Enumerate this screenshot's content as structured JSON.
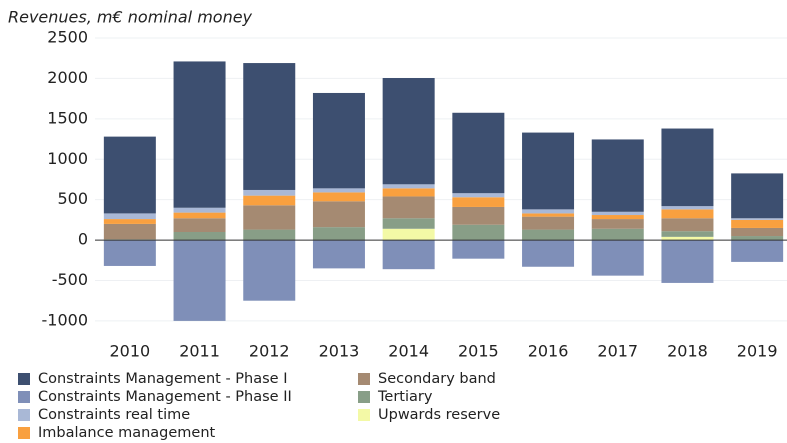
{
  "chart_data": {
    "type": "stacked_bar",
    "title": "Revenues, m€ nominal money",
    "categories": [
      "2010",
      "2011",
      "2012",
      "2013",
      "2014",
      "2015",
      "2016",
      "2017",
      "2018",
      "2019"
    ],
    "series": [
      {
        "name": "Upwards reserve",
        "color": "#f3f9a6",
        "values": [
          0,
          0,
          0,
          0,
          140,
          0,
          0,
          0,
          40,
          0
        ]
      },
      {
        "name": "Tertiary",
        "color": "#889e87",
        "values": [
          10,
          100,
          130,
          160,
          130,
          190,
          130,
          140,
          70,
          50
        ]
      },
      {
        "name": "Secondary band",
        "color": "#a58a72",
        "values": [
          190,
          170,
          300,
          320,
          270,
          220,
          160,
          120,
          160,
          100
        ]
      },
      {
        "name": "Imbalance management",
        "color": "#f9a03f",
        "values": [
          60,
          70,
          120,
          110,
          100,
          120,
          40,
          50,
          110,
          100
        ]
      },
      {
        "name": "Constraints real time",
        "color": "#a9b8d6",
        "values": [
          70,
          60,
          70,
          50,
          50,
          50,
          50,
          40,
          40,
          20
        ]
      },
      {
        "name": "Constraints Management - Phase I",
        "color": "#3d4f70",
        "values": [
          950,
          1810,
          1570,
          1180,
          1315,
          995,
          950,
          895,
          960,
          555
        ]
      },
      {
        "name": "Constraints Management - Phase II",
        "color": "#7f8fb8",
        "values": [
          -320,
          -1000,
          -750,
          -350,
          -360,
          -230,
          -330,
          -440,
          -530,
          -270
        ]
      }
    ],
    "legend_order": [
      5,
      6,
      4,
      3,
      2,
      1,
      0
    ],
    "ylim": [
      -1100,
      2500
    ],
    "yticks": [
      -1000,
      -500,
      0,
      500,
      1000,
      1500,
      2000,
      2500
    ],
    "grid": true
  }
}
